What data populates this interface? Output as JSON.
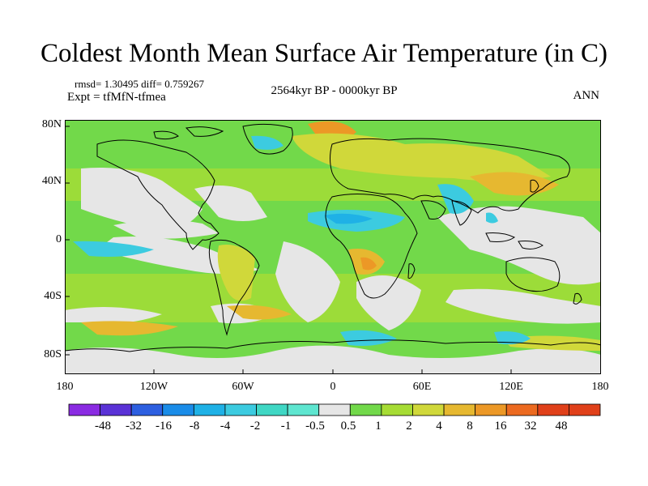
{
  "title": "Coldest Month Mean Surface Air Temperature (in C)",
  "stats_line": "rmsd= 1.30495 diff= 0.759267",
  "experiment": "Expt = tfMfN-tfmea",
  "period": "2564kyr BP - 0000kyr BP",
  "season": "ANN",
  "y_axis_labels": [
    "80N",
    "40N",
    "0",
    "40S",
    "80S"
  ],
  "x_axis_labels": [
    "180",
    "120W",
    "60W",
    "0",
    "60E",
    "120E",
    "180"
  ],
  "colorbar": {
    "labels": [
      "-48",
      "-32",
      "-16",
      "-8",
      "-4",
      "-2",
      "-1",
      "-0.5",
      "0.5",
      "1",
      "2",
      "4",
      "8",
      "16",
      "32",
      "48"
    ],
    "colors": [
      "#8a2be2",
      "#5a32d6",
      "#2d5fe0",
      "#1a8ce8",
      "#1fb1e6",
      "#3ccbe0",
      "#3fd7c4",
      "#5ee6d0",
      "#e6e6e6",
      "#72d94a",
      "#a6dc34",
      "#d0d83a",
      "#e6b830",
      "#ec9826",
      "#ec6a20",
      "#e0401a"
    ]
  },
  "field_colors": {
    "ocean_low": "#72d94a",
    "ocean_mid": "#a6dc34",
    "neutral": "#e6e6e6",
    "warm": "#d0d83a",
    "warmer": "#e6b830",
    "hot": "#ec9826",
    "cool": "#3ccbe0",
    "cooler": "#1fb1e6",
    "coast": "#000000"
  }
}
